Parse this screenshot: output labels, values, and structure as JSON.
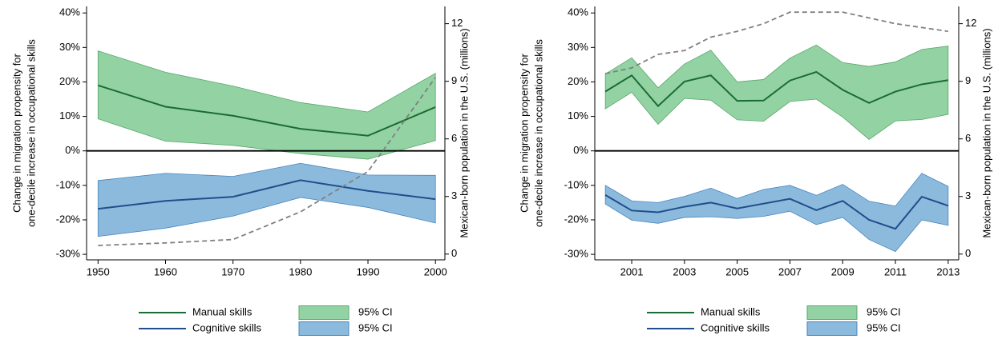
{
  "chart_data": [
    {
      "type": "line",
      "x": [
        1950,
        1960,
        1970,
        1980,
        1990,
        2000
      ],
      "xlim": [
        1948.3,
        2001.4
      ],
      "xticks": [
        1950,
        1960,
        1970,
        1980,
        1990,
        2000
      ],
      "ylabel": [
        "Change in migration propensity for",
        "one-decile increase in occupational skills"
      ],
      "ylim": [
        -31.6,
        41.9
      ],
      "yticks": [
        {
          "value": -30,
          "label": "-30%"
        },
        {
          "value": -20,
          "label": "-20%"
        },
        {
          "value": -10,
          "label": "-10%"
        },
        {
          "value": 0,
          "label": "0%"
        },
        {
          "value": 10,
          "label": "10%"
        },
        {
          "value": 20,
          "label": "20%"
        },
        {
          "value": 30,
          "label": "30%"
        },
        {
          "value": 40,
          "label": "40%"
        }
      ],
      "y2label": "Mexican-born population in the U.S. (millions)",
      "y2lim": [
        -0.3,
        12.9
      ],
      "y2ticks": [
        0,
        3,
        6,
        9,
        12
      ],
      "series": [
        {
          "name": "Manual skills",
          "color": "#1b6b35",
          "values": [
            19,
            12.8,
            10.2,
            6.4,
            4.4,
            12.7
          ],
          "ci_name": "95% CI",
          "ci_color": "#93d2a2",
          "ci_edge": "#5aa86c",
          "ci_upper": [
            29,
            22.8,
            18.8,
            14,
            11.3,
            22.5
          ],
          "ci_lower": [
            9.3,
            2.8,
            1.6,
            -0.8,
            -2.4,
            3
          ]
        },
        {
          "name": "Cognitive skills",
          "color": "#1f4e8c",
          "values": [
            -16.8,
            -14.5,
            -13.3,
            -8.5,
            -11.6,
            -14
          ],
          "ci_name": "95% CI",
          "ci_color": "#8cbadd",
          "ci_edge": "#4a86bf",
          "ci_upper": [
            -8.6,
            -6.5,
            -7.4,
            -3.6,
            -7,
            -7.1
          ],
          "ci_lower": [
            -24.8,
            -22.4,
            -18.9,
            -13.5,
            -16.4,
            -20.9
          ]
        },
        {
          "color": "#808080",
          "axis": "y2",
          "style": "dashed",
          "values": [
            0.45,
            0.58,
            0.76,
            2.2,
            4.3,
            9.2
          ]
        }
      ]
    },
    {
      "type": "line",
      "x": [
        2000,
        2001,
        2002,
        2003,
        2004,
        2005,
        2006,
        2007,
        2008,
        2009,
        2010,
        2011,
        2012,
        2013
      ],
      "xlim": [
        1999.6,
        2013.4
      ],
      "xticks": [
        2001,
        2003,
        2005,
        2007,
        2009,
        2011,
        2013
      ],
      "ylabel": [
        "Change in migration propensity for",
        "one-decile increase in occupational skills"
      ],
      "ylim": [
        -31.6,
        41.9
      ],
      "yticks": [
        {
          "value": -30,
          "label": "-30%"
        },
        {
          "value": -20,
          "label": "-20%"
        },
        {
          "value": -10,
          "label": "-10%"
        },
        {
          "value": 0,
          "label": "0%"
        },
        {
          "value": 10,
          "label": "10%"
        },
        {
          "value": 20,
          "label": "20%"
        },
        {
          "value": 30,
          "label": "30%"
        },
        {
          "value": 40,
          "label": "40%"
        }
      ],
      "y2label": "Mexican-born population in the U.S. (millions)",
      "y2lim": [
        -0.3,
        12.9
      ],
      "y2ticks": [
        0,
        3,
        6,
        9,
        12
      ],
      "series": [
        {
          "name": "Manual skills",
          "color": "#1b6b35",
          "values": [
            17.2,
            21.9,
            13,
            20.1,
            21.9,
            14.5,
            14.6,
            20.4,
            22.9,
            17.7,
            13.9,
            17.2,
            19.3,
            20.5
          ],
          "ci_name": "95% CI",
          "ci_color": "#93d2a2",
          "ci_edge": "#5aa86c",
          "ci_upper": [
            22.3,
            27,
            18.3,
            25.2,
            29.2,
            20,
            20.7,
            26.9,
            30.7,
            25.6,
            24.5,
            25.8,
            29.4,
            30.4
          ],
          "ci_lower": [
            12.2,
            17,
            7.7,
            15.2,
            14.7,
            9,
            8.6,
            14.3,
            15,
            9.8,
            3.3,
            8.7,
            9.1,
            10.6
          ]
        },
        {
          "name": "Cognitive skills",
          "color": "#1f4e8c",
          "values": [
            -12.8,
            -17.3,
            -17.8,
            -16.2,
            -15,
            -16.7,
            -15.3,
            -13.9,
            -17.2,
            -14.5,
            -20,
            -22.6,
            -13.3,
            -15.9
          ],
          "ci_name": "95% CI",
          "ci_color": "#8cbadd",
          "ci_edge": "#4a86bf",
          "ci_upper": [
            -10,
            -14.5,
            -15,
            -13.2,
            -10.8,
            -13.8,
            -11.2,
            -10,
            -12.9,
            -9.7,
            -14.6,
            -16,
            -6.5,
            -10.3
          ],
          "ci_lower": [
            -15.4,
            -20.1,
            -21,
            -19.3,
            -19.1,
            -19.6,
            -19,
            -17.5,
            -21.4,
            -19.3,
            -25.7,
            -29.2,
            -20,
            -21.6
          ]
        },
        {
          "color": "#808080",
          "axis": "y2",
          "style": "dashed",
          "values": [
            9.4,
            9.7,
            10.4,
            10.6,
            11.3,
            11.6,
            12,
            12.6,
            12.6,
            12.6,
            12.3,
            12,
            11.8,
            11.6
          ]
        }
      ]
    }
  ]
}
